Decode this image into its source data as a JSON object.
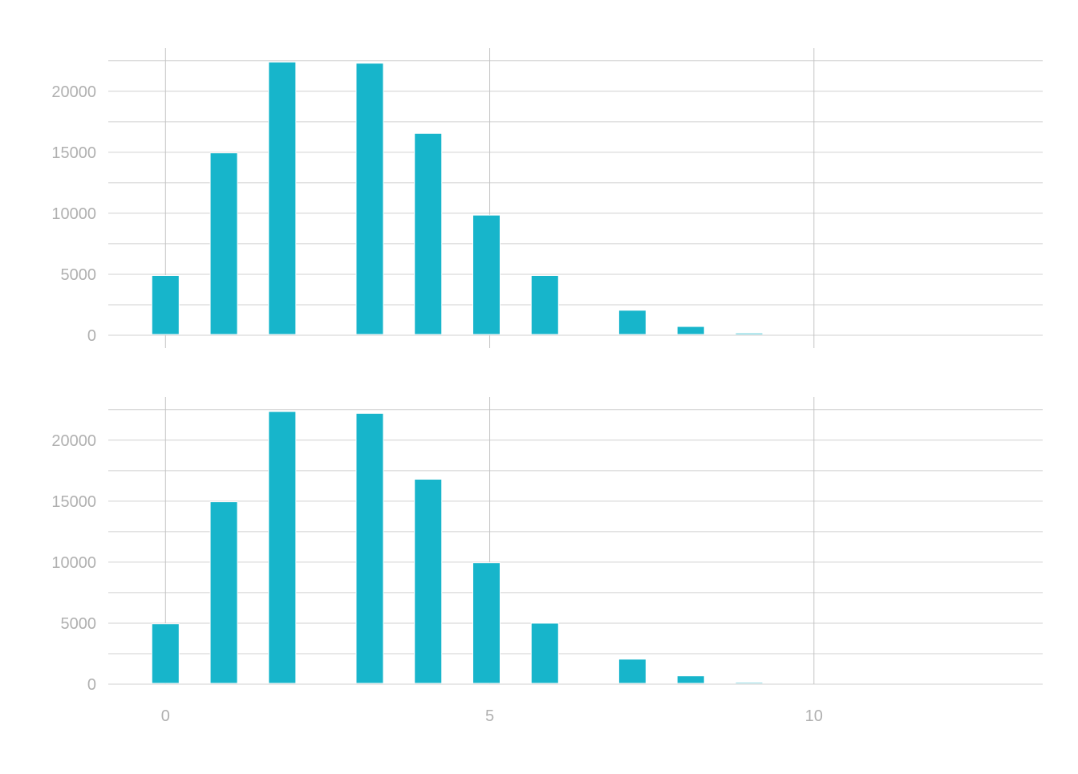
{
  "chart_data": [
    {
      "type": "bar",
      "x": [
        0,
        0.9,
        1.8,
        3.15,
        4.05,
        4.95,
        5.85,
        7.2,
        8.1,
        9.0
      ],
      "values": [
        4900,
        14950,
        22400,
        22300,
        16550,
        9850,
        4900,
        2050,
        720,
        180
      ],
      "xlim": [
        -0.9,
        13.9
      ],
      "ylim": [
        0,
        23500
      ],
      "xticks": [
        "0",
        "5",
        "10"
      ],
      "yticks": [
        "0",
        "5000",
        "10000",
        "15000",
        "20000"
      ],
      "x_tick_labels_shown": false,
      "grid": true,
      "bar_color": "#17b5cb"
    },
    {
      "type": "bar",
      "x": [
        0,
        0.9,
        1.8,
        3.15,
        4.05,
        4.95,
        5.85,
        7.2,
        8.1,
        9.0
      ],
      "values": [
        4950,
        14950,
        22350,
        22200,
        16800,
        9950,
        5000,
        2050,
        680,
        160
      ],
      "xlim": [
        -0.9,
        13.9
      ],
      "ylim": [
        0,
        23500
      ],
      "xticks": [
        "0",
        "5",
        "10"
      ],
      "yticks": [
        "0",
        "5000",
        "10000",
        "15000",
        "20000"
      ],
      "x_tick_labels_shown": true,
      "grid": true,
      "bar_color": "#17b5cb"
    }
  ]
}
